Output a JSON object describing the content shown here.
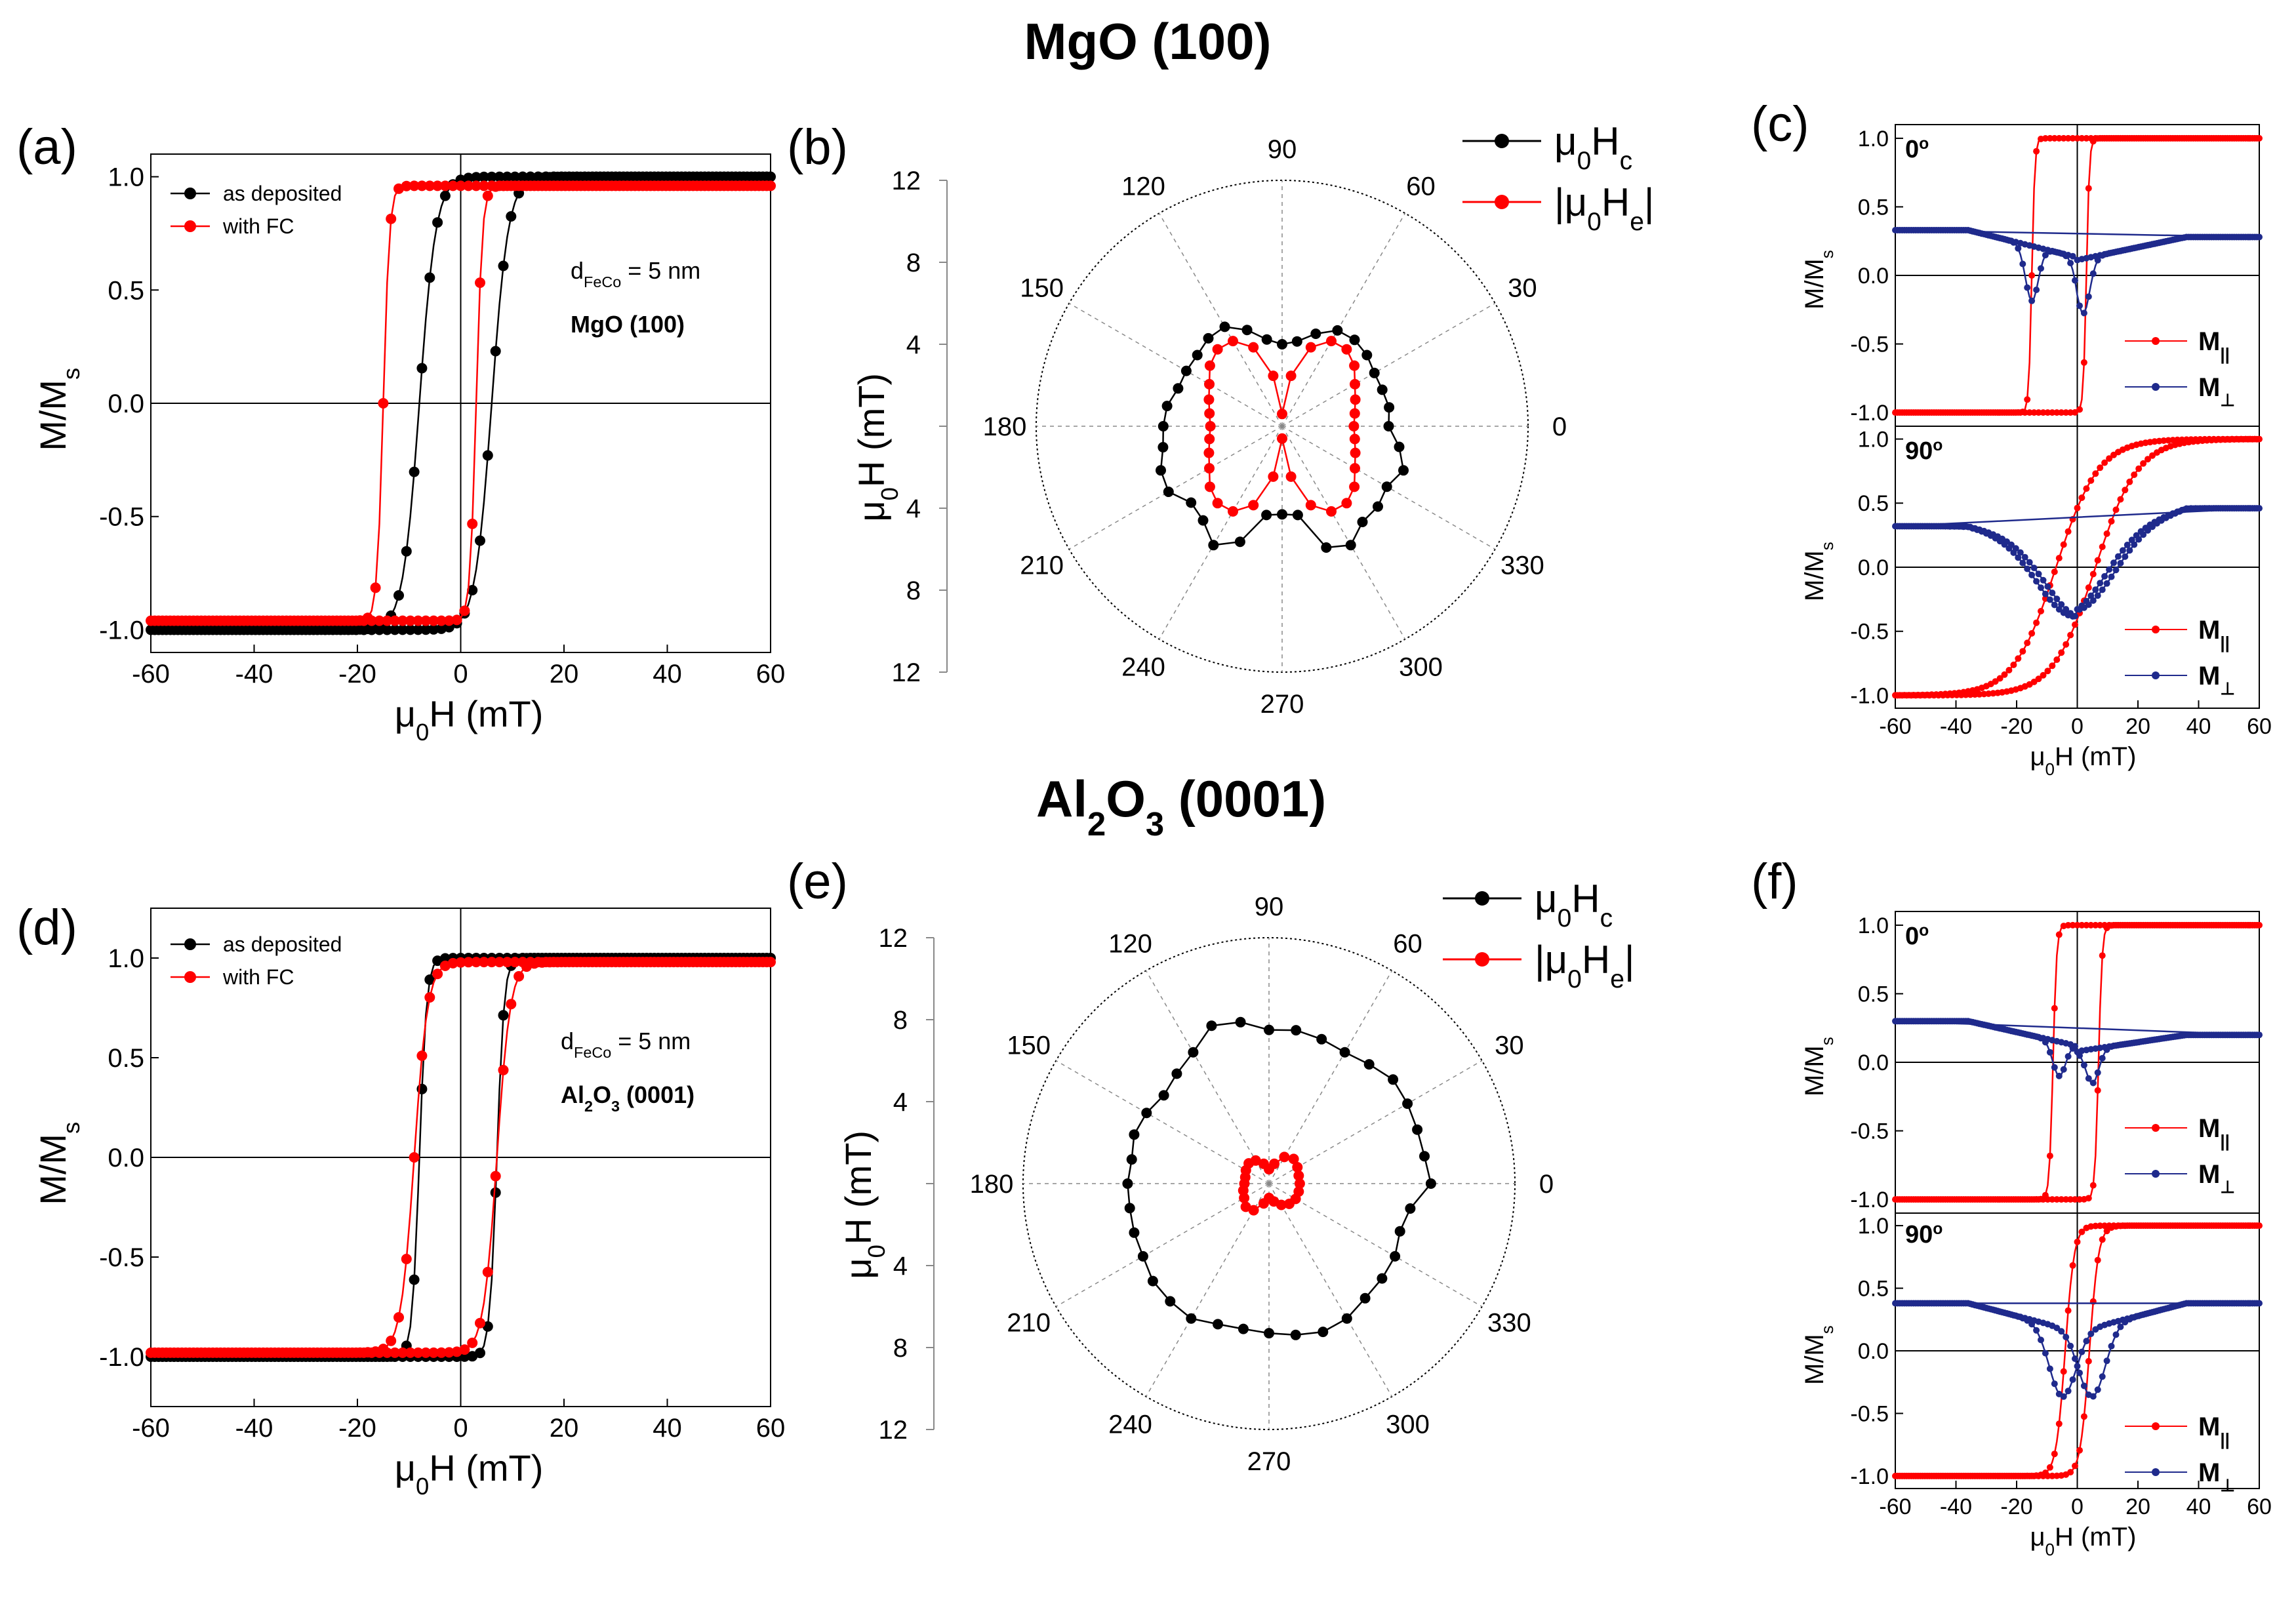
{
  "figure": {
    "row_titles": [
      {
        "id": "mgo",
        "main": "MgO (100)",
        "sub_parts": []
      },
      {
        "id": "al2o3",
        "parts": [
          [
            "Al",
            ""
          ],
          [
            "2",
            "sub"
          ],
          [
            "O",
            ""
          ],
          [
            "3",
            "sub"
          ],
          [
            " (0001)",
            ""
          ]
        ]
      }
    ],
    "panel_letters": [
      "(a)",
      "(b)",
      "(c)",
      "(d)",
      "(e)",
      "(f)"
    ]
  },
  "chart_data": [
    {
      "id": "a",
      "type": "line",
      "panel_label": "(a)",
      "xlabel": "μ0H (mT)",
      "ylabel": "M/Ms",
      "xlim": [
        -60,
        60
      ],
      "ylim": [
        -1.1,
        1.1
      ],
      "xticks": [
        -60,
        -40,
        -20,
        0,
        20,
        40,
        60
      ],
      "yticks": [
        -1.0,
        -0.5,
        0.0,
        0.5,
        1.0
      ],
      "legend": {
        "placement": "top-left",
        "entries": [
          "as deposited",
          "with FC"
        ]
      },
      "annotation": {
        "line1": "dFeCo = 5 nm",
        "line2": "MgO (100)"
      },
      "series": [
        {
          "name": "as deposited",
          "color": "#000000",
          "loop": {
            "hc": [
              -8,
              6
            ],
            "sat": 1.0,
            "width": 3.2
          }
        },
        {
          "name": "with FC",
          "color": "#ff0000",
          "loop": {
            "hc": [
              -15,
              3
            ],
            "sat": 0.96,
            "width": 1.2
          }
        }
      ]
    },
    {
      "id": "b",
      "type": "polar",
      "panel_label": "(b)",
      "rlabel": "μ0H (mT)",
      "rmax": 12,
      "rticks": [
        4,
        8,
        12
      ],
      "angles": [
        0,
        30,
        60,
        90,
        120,
        150,
        180,
        210,
        240,
        270,
        300,
        330
      ],
      "legend": {
        "placement": "top-right",
        "entries": [
          "μ0Hc",
          "|μ0He|"
        ]
      },
      "series": [
        {
          "name": "μ0Hc",
          "color": "#000000",
          "theta": [
            0,
            10,
            20,
            30,
            40,
            50,
            60,
            70,
            80,
            90,
            100,
            110,
            120,
            130,
            140,
            150,
            160,
            170,
            180,
            190,
            200,
            210,
            220,
            230,
            240,
            250,
            260,
            270,
            280,
            290,
            300,
            310,
            320,
            330,
            340,
            350
          ],
          "r": [
            5.2,
            5.3,
            5.2,
            5.2,
            5.4,
            5.5,
            5.4,
            4.8,
            4.2,
            4.0,
            4.3,
            5.0,
            5.6,
            5.6,
            5.4,
            5.4,
            5.4,
            5.7,
            5.8,
            5.9,
            6.3,
            6.4,
            5.8,
            6.0,
            6.7,
            6.0,
            4.4,
            4.3,
            4.4,
            6.3,
            6.7,
            6.1,
            6.1,
            5.9,
            6.3,
            5.8
          ]
        },
        {
          "name": "|μ0He|",
          "color": "#ff0000",
          "theta": [
            0,
            10,
            20,
            30,
            40,
            50,
            60,
            70,
            80,
            90,
            100,
            110,
            120,
            130,
            140,
            150,
            160,
            170,
            180,
            190,
            200,
            210,
            220,
            230,
            240,
            250,
            260,
            270,
            280,
            290,
            300,
            310,
            320,
            330,
            340,
            350
          ],
          "r": [
            3.5,
            3.6,
            3.8,
            4.1,
            4.6,
            4.9,
            4.8,
            4.1,
            2.5,
            0.6,
            2.5,
            4.1,
            4.8,
            4.9,
            4.6,
            4.1,
            3.8,
            3.6,
            3.5,
            3.6,
            3.8,
            4.1,
            4.6,
            4.9,
            4.8,
            4.1,
            2.5,
            0.6,
            2.5,
            4.1,
            4.8,
            4.9,
            4.6,
            4.1,
            3.8,
            3.6
          ]
        }
      ]
    },
    {
      "id": "c_top",
      "type": "line",
      "panel_label": "(c)",
      "angle_label": "0",
      "ylabel": "M/Ms",
      "xlim": [
        -60,
        60
      ],
      "ylim": [
        -1.1,
        1.1
      ],
      "yticks": [
        -1.0,
        -0.5,
        0.0,
        0.5,
        1.0
      ],
      "legend": {
        "placement": "bottom-right",
        "entries": [
          "M||",
          "M⊥"
        ]
      },
      "series": [
        {
          "name": "M||",
          "color": "#ff0000",
          "loop": {
            "hc": [
              -15,
              3
            ],
            "sat": 1.0,
            "width": 1.0
          }
        },
        {
          "name": "M⊥",
          "color": "#1f2a8c",
          "dip": {
            "pos": [
              -15,
              2
            ],
            "base": 0.33,
            "base_r": 0.28,
            "depth": -0.3,
            "width": 3
          }
        }
      ]
    },
    {
      "id": "c_bottom",
      "type": "line",
      "angle_label": "90",
      "xlabel": "μ0H (mT)",
      "ylabel": "M/Ms",
      "xlim": [
        -60,
        60
      ],
      "ylim": [
        -1.1,
        1.1
      ],
      "xticks": [
        -60,
        -40,
        -20,
        0,
        20,
        40,
        60
      ],
      "yticks": [
        -1.0,
        -0.5,
        0.0,
        0.5,
        1.0
      ],
      "legend": {
        "placement": "bottom-right",
        "entries": [
          "M||",
          "M⊥"
        ]
      },
      "series": [
        {
          "name": "M||",
          "color": "#ff0000",
          "loop": {
            "hc": [
              -7,
              6
            ],
            "sat": 1.0,
            "width": 14
          }
        },
        {
          "name": "M⊥",
          "color": "#1f2a8c",
          "dip": {
            "pos": [
              -2,
              1
            ],
            "base": 0.32,
            "base_r": 0.46,
            "depth": -0.42,
            "width": 16
          }
        }
      ]
    },
    {
      "id": "d",
      "type": "line",
      "panel_label": "(d)",
      "xlabel": "μ0H (mT)",
      "ylabel": "M/Ms",
      "xlim": [
        -60,
        60
      ],
      "ylim": [
        -1.25,
        1.25
      ],
      "xticks": [
        -60,
        -40,
        -20,
        0,
        20,
        40,
        60
      ],
      "yticks": [
        -1.0,
        -0.5,
        0.0,
        0.5,
        1.0
      ],
      "legend": {
        "placement": "top-left",
        "entries": [
          "as deposited",
          "with FC"
        ]
      },
      "annotation": {
        "line1": "dFeCo = 5 nm",
        "line2": "Al2O3 (0001)"
      },
      "series": [
        {
          "name": "as deposited",
          "color": "#000000",
          "loop": {
            "hc": [
              -8,
              7
            ],
            "sat": 1.0,
            "width": 1.4
          }
        },
        {
          "name": "with FC",
          "color": "#ff0000",
          "loop": {
            "hc": [
              -9,
              7
            ],
            "sat": 0.98,
            "width": 2.6
          }
        }
      ]
    },
    {
      "id": "e",
      "type": "polar",
      "panel_label": "(e)",
      "rlabel": "μ0H (mT)",
      "rmax": 12,
      "rticks": [
        4,
        8,
        12
      ],
      "angles": [
        0,
        30,
        60,
        90,
        120,
        150,
        180,
        210,
        240,
        270,
        300,
        330
      ],
      "legend": {
        "placement": "top-right",
        "entries": [
          "μ0Hc",
          "|μ0He|"
        ]
      },
      "series": [
        {
          "name": "μ0Hc",
          "color": "#000000",
          "theta": [
            0,
            10,
            20,
            30,
            40,
            50,
            60,
            70,
            80,
            90,
            100,
            110,
            120,
            130,
            140,
            150,
            160,
            170,
            180,
            190,
            200,
            210,
            220,
            230,
            240,
            250,
            260,
            270,
            280,
            290,
            300,
            310,
            320,
            330,
            340,
            350
          ],
          "r": [
            7.9,
            7.7,
            7.7,
            7.8,
            7.9,
            7.6,
            7.4,
            7.5,
            7.6,
            7.5,
            8.0,
            8.2,
            7.4,
            7.0,
            6.7,
            6.9,
            7.0,
            6.8,
            6.9,
            6.9,
            7.0,
            7.1,
            7.4,
            7.5,
            7.6,
            7.3,
            7.2,
            7.3,
            7.5,
            7.7,
            7.6,
            7.3,
            7.2,
            7.1,
            6.8,
            7.0
          ]
        },
        {
          "name": "|μ0He|",
          "color": "#ff0000",
          "theta": [
            0,
            15,
            30,
            45,
            60,
            75,
            90,
            105,
            120,
            135,
            150,
            165,
            180,
            195,
            210,
            225,
            240,
            255,
            270,
            285,
            300,
            315,
            330,
            345
          ],
          "r": [
            1.5,
            1.5,
            1.6,
            1.7,
            1.5,
            1.0,
            0.7,
            1.0,
            1.3,
            1.4,
            1.3,
            1.2,
            1.2,
            1.3,
            1.4,
            1.6,
            1.5,
            1.0,
            0.7,
            0.9,
            1.2,
            1.4,
            1.5,
            1.5
          ]
        }
      ]
    },
    {
      "id": "f_top",
      "type": "line",
      "panel_label": "(f)",
      "angle_label": "0",
      "ylabel": "M/Ms",
      "xlim": [
        -60,
        60
      ],
      "ylim": [
        -1.1,
        1.1
      ],
      "yticks": [
        -1.0,
        -0.5,
        0.0,
        0.5,
        1.0
      ],
      "legend": {
        "placement": "bottom-right",
        "entries": [
          "M||",
          "M⊥"
        ]
      },
      "series": [
        {
          "name": "M||",
          "color": "#ff0000",
          "loop": {
            "hc": [
              -8,
              7
            ],
            "sat": 1.0,
            "width": 1.2
          }
        },
        {
          "name": "M⊥",
          "color": "#1f2a8c",
          "dip": {
            "pos": [
              -6,
              5
            ],
            "base": 0.3,
            "base_r": 0.2,
            "depth": -0.15,
            "width": 3
          }
        }
      ]
    },
    {
      "id": "f_bottom",
      "type": "line",
      "angle_label": "90",
      "xlabel": "μ0H (mT)",
      "ylabel": "M/Ms",
      "xlim": [
        -60,
        60
      ],
      "ylim": [
        -1.1,
        1.1
      ],
      "xticks": [
        -60,
        -40,
        -20,
        0,
        20,
        40,
        60
      ],
      "yticks": [
        -1.0,
        -0.5,
        0.0,
        0.5,
        1.0
      ],
      "legend": {
        "placement": "bottom-right",
        "entries": [
          "M||",
          "M⊥"
        ]
      },
      "series": [
        {
          "name": "M||",
          "color": "#ff0000",
          "loop": {
            "hc": [
              -4,
              4
            ],
            "sat": 1.0,
            "width": 3
          }
        },
        {
          "name": "M⊥",
          "color": "#1f2a8c",
          "dip": {
            "pos": [
              -5,
              5
            ],
            "base": 0.38,
            "base_r": 0.38,
            "depth": -0.45,
            "width": 6
          }
        }
      ]
    }
  ]
}
